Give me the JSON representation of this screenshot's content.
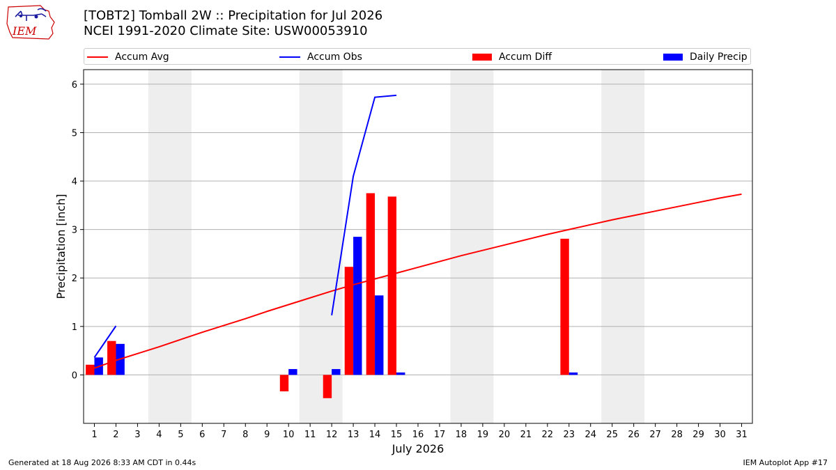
{
  "header": {
    "title_line1": "[TOBT2] Tomball 2W :: Precipitation for Jul 2026",
    "title_line2": "NCEI 1991-2020 Climate Site: USW00053910"
  },
  "logo": {
    "text": "IEM",
    "color": "#cc0000"
  },
  "legend": [
    {
      "label": "Accum Avg",
      "kind": "line",
      "color": "#ff0000"
    },
    {
      "label": "Accum Obs",
      "kind": "line",
      "color": "#0000ff"
    },
    {
      "label": "Accum Diff",
      "kind": "box",
      "color": "#ff0000"
    },
    {
      "label": "Daily Precip",
      "kind": "box",
      "color": "#0000ff"
    }
  ],
  "footer": {
    "left": "Generated at 18 Aug 2026 8:33 AM CDT in 0.44s",
    "right": "IEM Autoplot App #17"
  },
  "chart_data": {
    "type": "bar",
    "xlabel": "July 2026",
    "ylabel": "Precipitation [inch]",
    "xlim": [
      0.5,
      31.5
    ],
    "ylim": [
      -1.0,
      6.3
    ],
    "yticks": [
      0,
      1,
      2,
      3,
      4,
      5,
      6
    ],
    "x": [
      1,
      2,
      3,
      4,
      5,
      6,
      7,
      8,
      9,
      10,
      11,
      12,
      13,
      14,
      15,
      16,
      17,
      18,
      19,
      20,
      21,
      22,
      23,
      24,
      25,
      26,
      27,
      28,
      29,
      30,
      31
    ],
    "weekend_shading": [
      [
        3.5,
        5.5
      ],
      [
        10.5,
        12.5
      ],
      [
        17.5,
        19.5
      ],
      [
        24.5,
        26.5
      ]
    ],
    "grid": "horizontal",
    "series": [
      {
        "name": "Accum Avg",
        "type": "line",
        "color": "#ff0000",
        "x": [
          1,
          2,
          3,
          4,
          5,
          6,
          7,
          8,
          9,
          10,
          11,
          12,
          13,
          14,
          15,
          16,
          17,
          18,
          19,
          20,
          21,
          22,
          23,
          24,
          25,
          26,
          27,
          28,
          29,
          30,
          31
        ],
        "values": [
          0.14,
          0.3,
          0.44,
          0.58,
          0.73,
          0.88,
          1.02,
          1.16,
          1.31,
          1.45,
          1.59,
          1.73,
          1.86,
          1.98,
          2.1,
          2.22,
          2.34,
          2.46,
          2.57,
          2.68,
          2.79,
          2.9,
          3.0,
          3.1,
          3.2,
          3.29,
          3.38,
          3.47,
          3.56,
          3.65,
          3.73
        ]
      },
      {
        "name": "Accum Obs",
        "type": "line",
        "color": "#0000ff",
        "segments": [
          {
            "x": [
              1,
              2
            ],
            "values": [
              0.36,
              1.01
            ]
          },
          {
            "x": [
              12,
              13,
              14,
              15
            ],
            "values": [
              1.23,
              4.1,
              5.73,
              5.77
            ]
          }
        ]
      },
      {
        "name": "Accum Diff",
        "type": "bar",
        "color": "#ff0000",
        "x": [
          1,
          2,
          10,
          12,
          13,
          14,
          15,
          23
        ],
        "values": [
          0.21,
          0.7,
          -0.34,
          -0.48,
          2.23,
          3.75,
          3.68,
          2.81
        ]
      },
      {
        "name": "Daily Precip",
        "type": "bar",
        "color": "#0000ff",
        "x": [
          1,
          2,
          10,
          12,
          13,
          14,
          15,
          23
        ],
        "values": [
          0.36,
          0.64,
          0.12,
          0.12,
          2.85,
          1.64,
          0.05,
          0.05
        ]
      }
    ]
  }
}
